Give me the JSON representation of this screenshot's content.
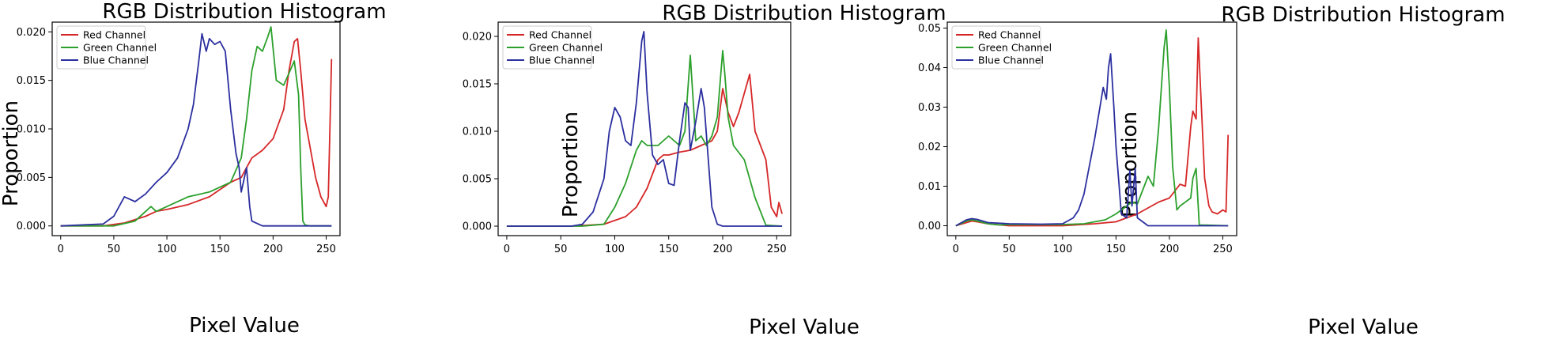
{
  "chart_data": [
    {
      "type": "line",
      "title": "RGB Distribution Histogram",
      "xlabel": "Pixel Value",
      "ylabel": "Proportion",
      "xlim": [
        -8,
        263
      ],
      "ylim": [
        -0.001,
        0.021
      ],
      "xticks": [
        0,
        50,
        100,
        150,
        200,
        250
      ],
      "yticks": [
        0.0,
        0.005,
        0.01,
        0.015,
        0.02
      ],
      "yticklabels": [
        "0.000",
        "0.005",
        "0.010",
        "0.015",
        "0.020"
      ],
      "legend_position": "top-left",
      "series": [
        {
          "name": "Red Channel",
          "color": "#d62728",
          "x": [
            0,
            40,
            60,
            80,
            90,
            100,
            120,
            140,
            160,
            170,
            175,
            180,
            190,
            200,
            210,
            215,
            220,
            223,
            226,
            230,
            235,
            240,
            245,
            250,
            252,
            255
          ],
          "y": [
            0,
            0,
            0.0003,
            0.001,
            0.0015,
            0.0017,
            0.0022,
            0.003,
            0.0045,
            0.005,
            0.006,
            0.007,
            0.0078,
            0.009,
            0.012,
            0.016,
            0.019,
            0.0193,
            0.016,
            0.011,
            0.008,
            0.005,
            0.003,
            0.002,
            0.003,
            0.0172
          ]
        },
        {
          "name": "Green Channel",
          "color": "#2ca02c",
          "x": [
            0,
            50,
            70,
            85,
            90,
            100,
            120,
            140,
            160,
            170,
            175,
            180,
            185,
            190,
            195,
            198,
            203,
            210,
            220,
            224,
            226,
            228,
            230,
            235,
            240,
            255
          ],
          "y": [
            0,
            0,
            0.0005,
            0.002,
            0.0015,
            0.002,
            0.003,
            0.0035,
            0.0045,
            0.007,
            0.011,
            0.016,
            0.0185,
            0.018,
            0.0195,
            0.0205,
            0.015,
            0.0145,
            0.017,
            0.0135,
            0.006,
            0.0005,
            0.0001,
            0,
            0,
            0
          ]
        },
        {
          "name": "Blue Channel",
          "color": "#2b2f9e",
          "x": [
            0,
            40,
            50,
            60,
            70,
            80,
            90,
            100,
            110,
            120,
            125,
            130,
            133,
            137,
            140,
            145,
            150,
            155,
            160,
            165,
            168,
            170,
            172,
            175,
            178,
            180,
            190,
            200,
            255
          ],
          "y": [
            0,
            0.0002,
            0.001,
            0.003,
            0.0025,
            0.0033,
            0.0045,
            0.0055,
            0.007,
            0.01,
            0.0125,
            0.017,
            0.0198,
            0.018,
            0.0193,
            0.0187,
            0.019,
            0.018,
            0.012,
            0.0075,
            0.006,
            0.0035,
            0.0045,
            0.006,
            0.002,
            0.0005,
            0,
            0,
            0
          ]
        }
      ]
    },
    {
      "type": "line",
      "title": "RGB Distribution Histogram",
      "xlabel": "Pixel Value",
      "ylabel": "Proportion",
      "xlim": [
        -8,
        263
      ],
      "ylim": [
        -0.001,
        0.0215
      ],
      "xticks": [
        0,
        50,
        100,
        150,
        200,
        250
      ],
      "yticks": [
        0.0,
        0.005,
        0.01,
        0.015,
        0.02
      ],
      "yticklabels": [
        "0.000",
        "0.005",
        "0.010",
        "0.015",
        "0.020"
      ],
      "legend_position": "top-left",
      "series": [
        {
          "name": "Red Channel",
          "color": "#d62728",
          "x": [
            0,
            60,
            90,
            110,
            120,
            130,
            140,
            145,
            150,
            160,
            170,
            180,
            190,
            195,
            200,
            205,
            210,
            215,
            220,
            225,
            230,
            235,
            240,
            245,
            250,
            252,
            255
          ],
          "y": [
            0,
            0,
            0.0002,
            0.001,
            0.002,
            0.004,
            0.007,
            0.0075,
            0.0075,
            0.0078,
            0.008,
            0.0085,
            0.009,
            0.01,
            0.0145,
            0.012,
            0.0105,
            0.012,
            0.014,
            0.016,
            0.01,
            0.0085,
            0.007,
            0.002,
            0.001,
            0.0025,
            0.0013
          ]
        },
        {
          "name": "Green Channel",
          "color": "#2ca02c",
          "x": [
            0,
            70,
            90,
            100,
            110,
            120,
            125,
            130,
            140,
            150,
            160,
            165,
            170,
            175,
            180,
            185,
            190,
            195,
            200,
            202,
            205,
            210,
            220,
            230,
            240,
            255
          ],
          "y": [
            0,
            0,
            0.0002,
            0.002,
            0.0045,
            0.008,
            0.009,
            0.0085,
            0.0085,
            0.0095,
            0.0085,
            0.01,
            0.018,
            0.009,
            0.0095,
            0.0085,
            0.0095,
            0.0115,
            0.0185,
            0.016,
            0.0115,
            0.0085,
            0.007,
            0.003,
            0.0001,
            0
          ]
        },
        {
          "name": "Blue Channel",
          "color": "#2b2f9e",
          "x": [
            0,
            60,
            70,
            80,
            90,
            95,
            100,
            105,
            110,
            115,
            120,
            125,
            127,
            130,
            135,
            140,
            145,
            150,
            155,
            160,
            165,
            168,
            170,
            175,
            180,
            183,
            190,
            195,
            200,
            255
          ],
          "y": [
            0,
            0,
            0.0002,
            0.0015,
            0.005,
            0.01,
            0.0125,
            0.0115,
            0.009,
            0.0085,
            0.013,
            0.0195,
            0.0205,
            0.014,
            0.0075,
            0.0065,
            0.007,
            0.0045,
            0.0043,
            0.009,
            0.013,
            0.0125,
            0.008,
            0.011,
            0.0145,
            0.0125,
            0.002,
            0.0002,
            0,
            0
          ]
        }
      ]
    },
    {
      "type": "line",
      "title": "RGB Distribution Histogram",
      "xlabel": "Pixel Value",
      "ylabel": "Proportion",
      "xlim": [
        -8,
        263
      ],
      "ylim": [
        -0.0025,
        0.0515
      ],
      "xticks": [
        0,
        50,
        100,
        150,
        200,
        250
      ],
      "yticks": [
        0.0,
        0.01,
        0.02,
        0.03,
        0.04,
        0.05
      ],
      "yticklabels": [
        "0.00",
        "0.01",
        "0.02",
        "0.03",
        "0.04",
        "0.05"
      ],
      "legend_position": "top-left",
      "series": [
        {
          "name": "Red Channel",
          "color": "#d62728",
          "x": [
            0,
            10,
            15,
            20,
            30,
            50,
            100,
            130,
            150,
            160,
            170,
            180,
            190,
            200,
            210,
            215,
            220,
            222,
            225,
            227,
            230,
            233,
            237,
            240,
            245,
            250,
            253,
            255
          ],
          "y": [
            0,
            0.0008,
            0.0012,
            0.001,
            0.0005,
            0,
            0,
            0.0005,
            0.001,
            0.002,
            0.003,
            0.0045,
            0.006,
            0.007,
            0.0105,
            0.01,
            0.025,
            0.029,
            0.027,
            0.0475,
            0.03,
            0.012,
            0.005,
            0.0035,
            0.003,
            0.004,
            0.0035,
            0.023
          ]
        },
        {
          "name": "Green Channel",
          "color": "#2ca02c",
          "x": [
            0,
            10,
            15,
            20,
            30,
            40,
            50,
            100,
            120,
            140,
            150,
            160,
            165,
            170,
            180,
            185,
            190,
            195,
            197,
            200,
            203,
            207,
            210,
            220,
            222,
            225,
            228,
            255
          ],
          "y": [
            0,
            0.0012,
            0.0015,
            0.0012,
            0.0005,
            0.0002,
            0.0003,
            0.0003,
            0.0005,
            0.0015,
            0.003,
            0.005,
            0.006,
            0.0055,
            0.0125,
            0.01,
            0.025,
            0.045,
            0.0495,
            0.035,
            0.015,
            0.004,
            0.005,
            0.007,
            0.012,
            0.0145,
            0.0002,
            0
          ]
        },
        {
          "name": "Blue Channel",
          "color": "#2b2f9e",
          "x": [
            0,
            10,
            15,
            20,
            25,
            30,
            50,
            80,
            100,
            110,
            115,
            120,
            125,
            130,
            135,
            138,
            141,
            143,
            145,
            148,
            150,
            153,
            155,
            160,
            163,
            165,
            168,
            170,
            180,
            255
          ],
          "y": [
            0,
            0.0015,
            0.0018,
            0.0016,
            0.0012,
            0.0008,
            0.0005,
            0.0004,
            0.0005,
            0.002,
            0.004,
            0.008,
            0.015,
            0.022,
            0.03,
            0.035,
            0.032,
            0.04,
            0.0435,
            0.03,
            0.02,
            0.01,
            0.003,
            0.002,
            0.014,
            0.005,
            0.0145,
            0.002,
            0,
            0
          ]
        }
      ]
    }
  ]
}
